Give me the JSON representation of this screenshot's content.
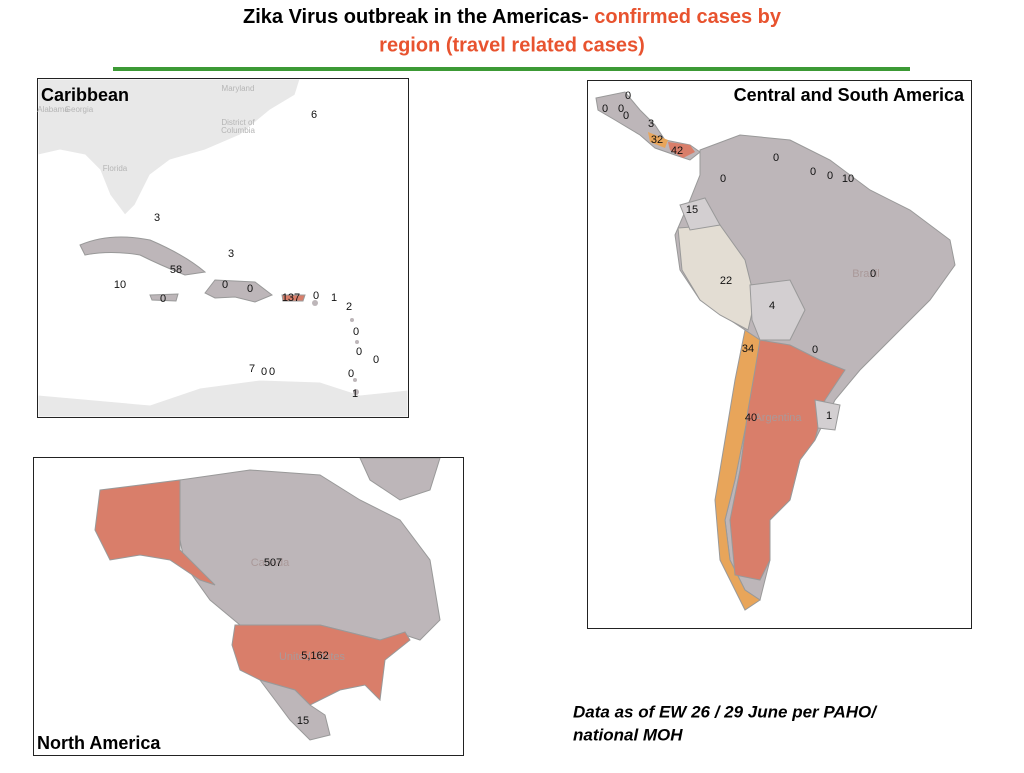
{
  "title": {
    "line1_black": "Zika Virus outbreak in the Americas-",
    "line1_red": "confirmed cases by",
    "line2_red": "region (travel related cases)"
  },
  "panels": {
    "caribbean": {
      "label": "Caribbean",
      "places": [
        "Maryland",
        "Alabama",
        "Georgia",
        "District of",
        "Columbia",
        "Florida"
      ],
      "counts": [
        6,
        3,
        3,
        58,
        10,
        0,
        0,
        0,
        137,
        0,
        1,
        2,
        0,
        0,
        0,
        0,
        7,
        0,
        0,
        1
      ]
    },
    "south": {
      "label": "Central and South America",
      "places": [
        "Brazil",
        "Argentina"
      ],
      "counts": [
        0,
        0,
        0,
        0,
        3,
        32,
        42,
        0,
        0,
        0,
        0,
        10,
        15,
        22,
        0,
        4,
        34,
        0,
        40,
        1
      ]
    },
    "north": {
      "label": "North America",
      "places": [
        "Canada",
        "United States"
      ],
      "counts": [
        507,
        {
          "value": 5162,
          "label": "5,162"
        },
        15
      ]
    }
  },
  "footnote": [
    "Data as of EW 26 / 29 June per PAHO/",
    "national MOH"
  ]
}
